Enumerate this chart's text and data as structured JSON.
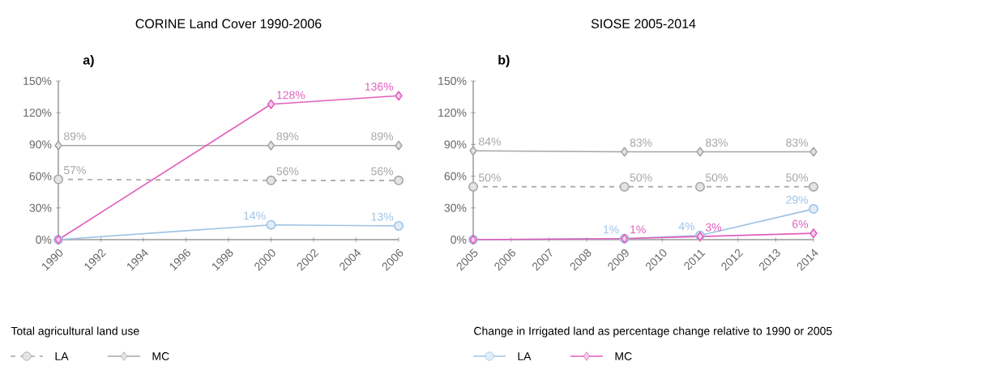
{
  "chart_data": [
    {
      "type": "line",
      "title": "CORINE Land Cover 1990-2006",
      "annotations": [
        "a)"
      ],
      "legend_title": "Total agricultural land use",
      "legend": "bottom left",
      "x": [
        1990,
        2000,
        2006
      ],
      "xlim": [
        1990,
        2006
      ],
      "xticks": [
        1990,
        1992,
        1994,
        1996,
        1998,
        2000,
        2002,
        2004,
        2006
      ],
      "ylim": [
        0,
        150
      ],
      "yticks": [
        {
          "value": 0,
          "label": "0%"
        },
        {
          "value": 30,
          "label": "30%"
        },
        {
          "value": 60,
          "label": "60%"
        },
        {
          "value": 90,
          "label": "90%"
        },
        {
          "value": 120,
          "label": "120%"
        },
        {
          "value": 150,
          "label": "150%"
        }
      ],
      "series": [
        {
          "name": "LA",
          "color": "#a6a6a6",
          "marker": "circle",
          "line_style": "dashed",
          "values": [
            57,
            56,
            56
          ],
          "value_labels": [
            "57%",
            "56%",
            "56%"
          ]
        },
        {
          "name": "MC",
          "color": "#a6a6a6",
          "marker": "diamond",
          "line_style": "solid",
          "values": [
            89,
            89,
            89
          ],
          "value_labels": [
            "89%",
            "89%",
            "89%"
          ]
        },
        {
          "color": "#9dc3e6",
          "marker": "circle",
          "line_style": "solid",
          "values": [
            0,
            14,
            13
          ],
          "value_labels": [
            null,
            "14%",
            "13%"
          ]
        },
        {
          "color": "#e15fbd",
          "marker": "diamond",
          "line_style": "solid",
          "values": [
            0,
            128,
            136
          ],
          "value_labels": [
            null,
            "128%",
            "136%"
          ]
        }
      ]
    },
    {
      "type": "line",
      "title": "SIOSE 2005-2014",
      "annotations": [
        "b)"
      ],
      "legend_title": "Change in Irrigated land as percentage change relative to 1990 or 2005",
      "legend": "bottom left",
      "x": [
        2005,
        2009,
        2011,
        2014
      ],
      "xlim": [
        2005,
        2014
      ],
      "xticks": [
        2005,
        2006,
        2007,
        2008,
        2009,
        2010,
        2011,
        2012,
        2013,
        2014
      ],
      "ylim": [
        0,
        150
      ],
      "yticks": [
        {
          "value": 0,
          "label": "0%"
        },
        {
          "value": 30,
          "label": "30%"
        },
        {
          "value": 60,
          "label": "60%"
        },
        {
          "value": 90,
          "label": "90%"
        },
        {
          "value": 120,
          "label": "120%"
        },
        {
          "value": 150,
          "label": "150%"
        }
      ],
      "series": [
        {
          "color": "#a6a6a6",
          "marker": "circle",
          "line_style": "dashed",
          "values": [
            50,
            50,
            50,
            50
          ],
          "value_labels": [
            "50%",
            "50%",
            "50%",
            "50%"
          ]
        },
        {
          "color": "#a6a6a6",
          "marker": "diamond",
          "line_style": "solid",
          "values": [
            84,
            83,
            83,
            83
          ],
          "value_labels": [
            "84%",
            "83%",
            "83%",
            "83%"
          ]
        },
        {
          "name": "LA",
          "color": "#9dc3e6",
          "marker": "circle",
          "line_style": "solid",
          "values": [
            0,
            1,
            4,
            29
          ],
          "value_labels": [
            null,
            "1%",
            "4%",
            "29%"
          ]
        },
        {
          "name": "MC",
          "color": "#e15fbd",
          "marker": "diamond",
          "line_style": "solid",
          "values": [
            0,
            1,
            3,
            6
          ],
          "value_labels": [
            null,
            "1%",
            "3%",
            "6%"
          ]
        }
      ]
    }
  ]
}
